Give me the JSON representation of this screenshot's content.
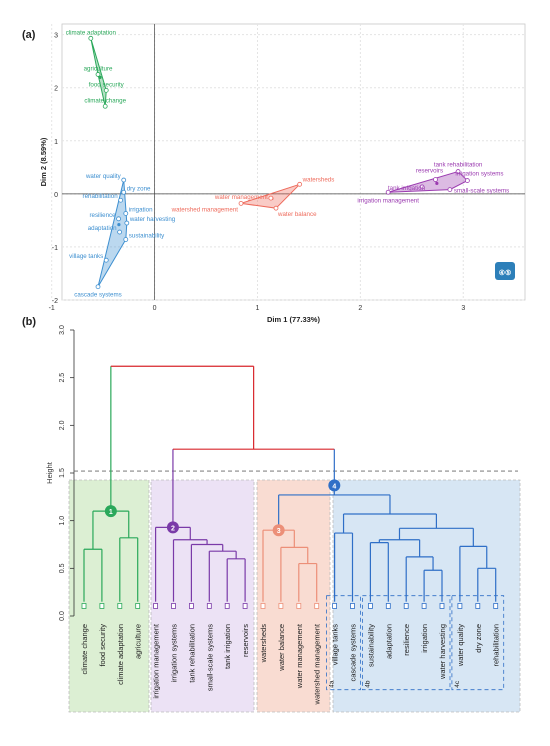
{
  "panel_a_label": "(a)",
  "panel_b_label": "(b)",
  "chart_data": [
    {
      "type": "scatter",
      "xlabel": "Dim 1 (77.33%)",
      "ylabel": "Dim 2 (8.59%)",
      "xlim": [
        -0.9,
        3.6
      ],
      "ylim": [
        -2.0,
        3.2
      ],
      "xticks": [
        -1,
        0,
        1,
        2,
        3
      ],
      "yticks": [
        -2,
        -1,
        0,
        1,
        2,
        3
      ],
      "grid": true,
      "badge": "④⑤",
      "clusters": [
        {
          "id": 1,
          "color": "#2aa85a",
          "points": [
            {
              "label": "climate adaptation",
              "x": -0.62,
              "y": 2.93
            },
            {
              "label": "agriculture",
              "x": -0.55,
              "y": 2.25
            },
            {
              "label": "food security",
              "x": -0.47,
              "y": 1.95
            },
            {
              "label": "climate change",
              "x": -0.48,
              "y": 1.65
            }
          ]
        },
        {
          "id": 2,
          "color": "#9b3bb0",
          "points": [
            {
              "label": "tank rehabilitation",
              "x": 2.95,
              "y": 0.42
            },
            {
              "label": "reservoirs",
              "x": 2.73,
              "y": 0.27
            },
            {
              "label": "irrigation systems",
              "x": 3.04,
              "y": 0.25
            },
            {
              "label": "tank irrigation",
              "x": 2.6,
              "y": 0.13
            },
            {
              "label": "small-scale systems",
              "x": 2.87,
              "y": 0.08
            },
            {
              "label": "irrigation management",
              "x": 2.27,
              "y": 0.03
            }
          ]
        },
        {
          "id": 3,
          "color": "#ee6b5c",
          "points": [
            {
              "label": "watersheds",
              "x": 1.41,
              "y": 0.18
            },
            {
              "label": "water management",
              "x": 1.13,
              "y": -0.08
            },
            {
              "label": "watershed management",
              "x": 0.84,
              "y": -0.18
            },
            {
              "label": "water balance",
              "x": 1.18,
              "y": -0.27
            }
          ]
        },
        {
          "id": 4,
          "color": "#3d8fd0",
          "points": [
            {
              "label": "water quality",
              "x": -0.3,
              "y": 0.26
            },
            {
              "label": "dry zone",
              "x": -0.3,
              "y": 0.03
            },
            {
              "label": "rehabilitation",
              "x": -0.33,
              "y": -0.12
            },
            {
              "label": "irrigation",
              "x": -0.28,
              "y": -0.37
            },
            {
              "label": "resilience",
              "x": -0.35,
              "y": -0.47
            },
            {
              "label": "water harvesting",
              "x": -0.27,
              "y": -0.55
            },
            {
              "label": "adaptation",
              "x": -0.34,
              "y": -0.72
            },
            {
              "label": "sustainability",
              "x": -0.28,
              "y": -0.86
            },
            {
              "label": "village tanks",
              "x": -0.47,
              "y": -1.25
            },
            {
              "label": "cascade systems",
              "x": -0.55,
              "y": -1.75
            }
          ]
        }
      ]
    },
    {
      "type": "dendrogram",
      "ylabel": "Height",
      "ylim": [
        0,
        3.0
      ],
      "yticks": [
        0.0,
        0.5,
        1.0,
        1.5,
        2.0,
        2.5,
        3.0
      ],
      "cut_height": 1.52,
      "leaves": [
        "climate change",
        "food security",
        "climate adaptation",
        "agriculture",
        "irrigation management",
        "irrigation systems",
        "tank rehabilitation",
        "small-scale systems",
        "tank irrigation",
        "reservoirs",
        "watersheds",
        "water balance",
        "water management",
        "watershed management",
        "village tanks",
        "cascade systems",
        "sustainability",
        "adaptation",
        "resilience",
        "irrigation",
        "water harvesting",
        "water quality",
        "dry zone",
        "rehabilitation"
      ],
      "clusters": [
        {
          "id": 1,
          "marker": "1",
          "color": "#2aa85a",
          "fill": "#dcefd3",
          "leaves": [
            0,
            1,
            2,
            3
          ]
        },
        {
          "id": 2,
          "marker": "2",
          "color": "#7a3aa8",
          "fill": "#ece2f5",
          "leaves": [
            4,
            5,
            6,
            7,
            8,
            9
          ]
        },
        {
          "id": 3,
          "marker": "3",
          "color": "#ec8f78",
          "fill": "#f9dcd2",
          "leaves": [
            10,
            11,
            12,
            13
          ]
        },
        {
          "id": 4,
          "marker": "4",
          "color": "#2f6fc7",
          "fill": "#d7e6f4",
          "leaves": [
            14,
            15,
            16,
            17,
            18,
            19,
            20,
            21,
            22,
            23
          ]
        }
      ],
      "subgroups": [
        {
          "label": "4a",
          "leaves": [
            14,
            15
          ]
        },
        {
          "label": "4b",
          "leaves": [
            16,
            17,
            18,
            19,
            20
          ]
        },
        {
          "label": "4c",
          "leaves": [
            21,
            22,
            23
          ]
        }
      ],
      "merges": [
        {
          "a": "L0",
          "b": "L1",
          "h": 0.7,
          "c": 1
        },
        {
          "a": "L2",
          "b": "L3",
          "h": 0.82,
          "c": 1
        },
        {
          "a": "M0",
          "b": "M1",
          "h": 1.1,
          "c": 1
        },
        {
          "a": "L8",
          "b": "L9",
          "h": 0.6,
          "c": 2
        },
        {
          "a": "L7",
          "b": "M3",
          "h": 0.68,
          "c": 2
        },
        {
          "a": "L6",
          "b": "M4",
          "h": 0.75,
          "c": 2
        },
        {
          "a": "L5",
          "b": "M5",
          "h": 0.8,
          "c": 2
        },
        {
          "a": "L4",
          "b": "M6",
          "h": 0.93,
          "c": 2
        },
        {
          "a": "L12",
          "b": "L13",
          "h": 0.55,
          "c": 3
        },
        {
          "a": "L11",
          "b": "M8",
          "h": 0.72,
          "c": 3
        },
        {
          "a": "L10",
          "b": "M9",
          "h": 0.9,
          "c": 3
        },
        {
          "a": "L14",
          "b": "L15",
          "h": 0.87,
          "c": 4
        },
        {
          "a": "L19",
          "b": "L20",
          "h": 0.48,
          "c": 4
        },
        {
          "a": "L18",
          "b": "M12",
          "h": 0.62,
          "c": 4
        },
        {
          "a": "L16",
          "b": "L17",
          "h": 0.77,
          "c": 4
        },
        {
          "a": "M14",
          "b": "M13",
          "h": 0.8,
          "c": 4
        },
        {
          "a": "L22",
          "b": "L23",
          "h": 0.5,
          "c": 4
        },
        {
          "a": "L21",
          "b": "M16",
          "h": 0.73,
          "c": 4
        },
        {
          "a": "M15",
          "b": "M17",
          "h": 0.92,
          "c": 4
        },
        {
          "a": "M11",
          "b": "M18",
          "h": 1.07,
          "c": 4
        },
        {
          "a": "M19",
          "b": "M10",
          "h": 1.27,
          "c": 4
        },
        {
          "a": "M20",
          "b": "M7",
          "h": 1.75,
          "c": 0
        },
        {
          "a": "M21",
          "b": "M2",
          "h": 2.62,
          "c": 0
        },
        {
          "a": "M22",
          "b": "M2",
          "h": 2.62,
          "c": -1
        },
        {
          "a": "M7",
          "b": "M21",
          "h": 0,
          "c": -2
        }
      ]
    }
  ]
}
